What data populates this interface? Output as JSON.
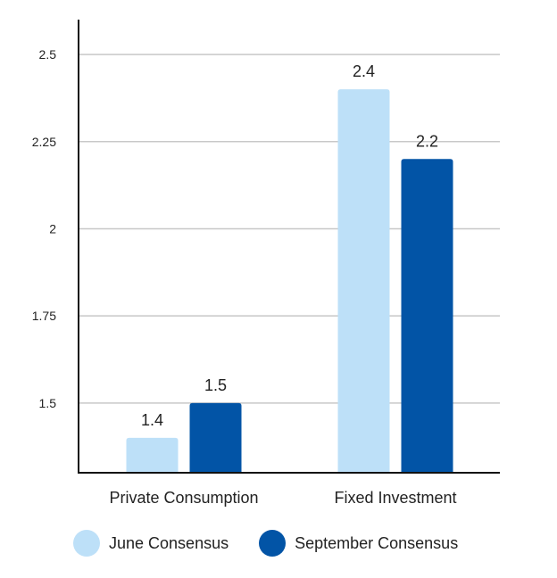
{
  "chart_data": {
    "type": "bar",
    "categories": [
      "Private Consumption",
      "Fixed Investment"
    ],
    "series": [
      {
        "name": "June Consensus",
        "values": [
          1.4,
          2.4
        ],
        "labels": [
          "1.4",
          "2.4"
        ],
        "color": "#bde0f8"
      },
      {
        "name": "September Consensus",
        "values": [
          1.5,
          2.2
        ],
        "labels": [
          "1.5",
          "2.2"
        ],
        "color": "#0254a6"
      }
    ],
    "y_ticks": [
      "1.5",
      "1.75",
      "2",
      "2.25",
      "2.5"
    ],
    "ylim": [
      1.3,
      2.6
    ],
    "grid": true,
    "legend": "bottom-left"
  }
}
